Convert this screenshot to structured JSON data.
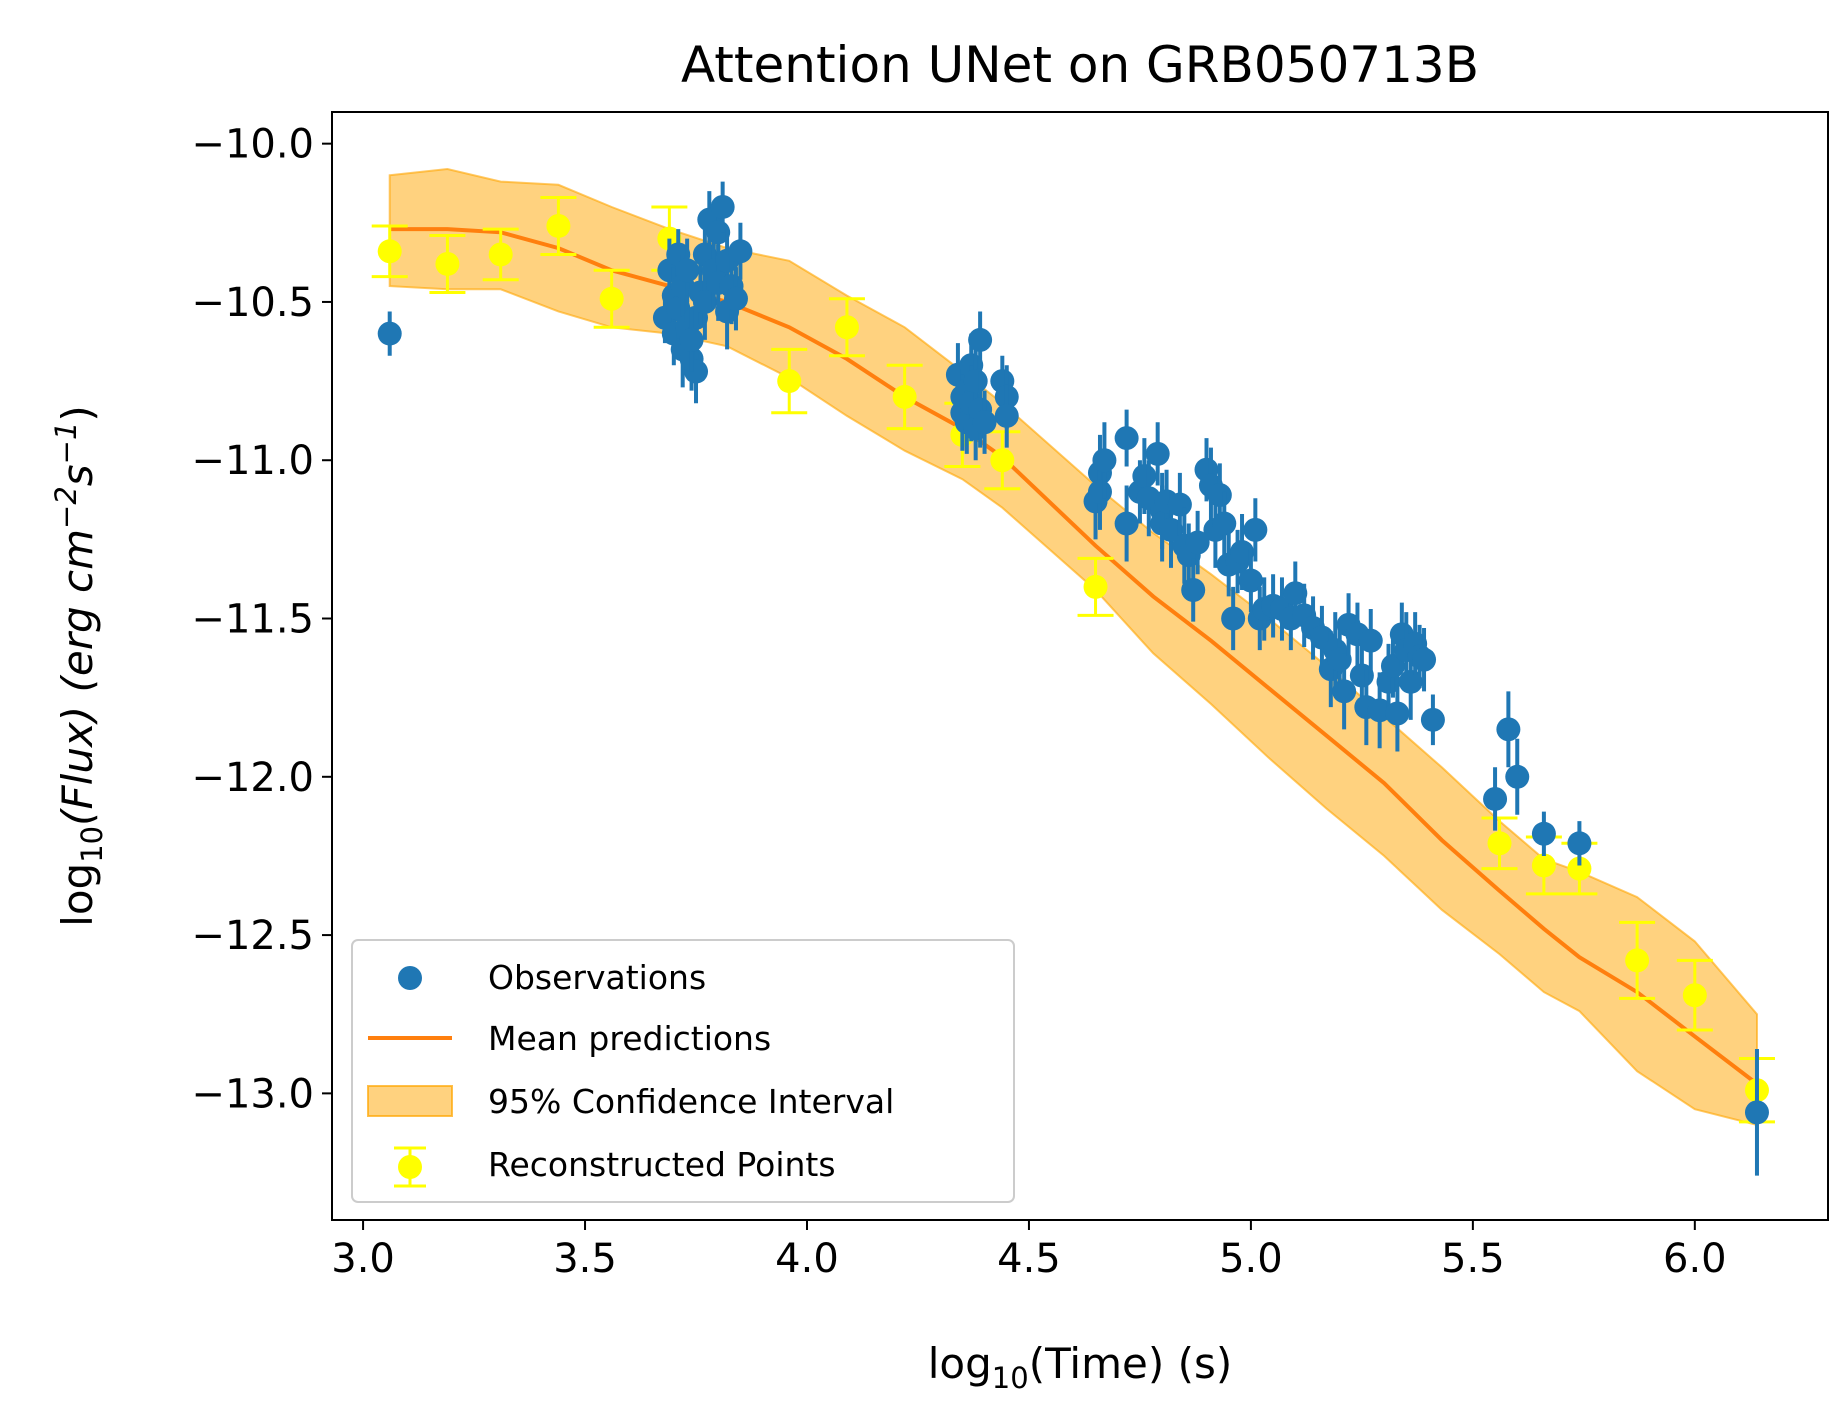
{
  "chart_data": {
    "type": "scatter",
    "title": "Attention UNet on GRB050713B",
    "xlabel_main": "log",
    "xlabel_sub": "10",
    "xlabel_rest": "(Time) (s)",
    "ylabel_main": "log",
    "ylabel_sub": "10",
    "ylabel_rest": "(Flux) (erg cm",
    "ylabel_exp1": "−2",
    "ylabel_s": "s",
    "ylabel_exp2": "−1",
    "ylabel_close": ")",
    "xlim": [
      2.93,
      6.3
    ],
    "ylim": [
      -13.4,
      -9.9
    ],
    "xticks": [
      3.0,
      3.5,
      4.0,
      4.5,
      5.0,
      5.5,
      6.0
    ],
    "xtick_labels": [
      "3.0",
      "3.5",
      "4.0",
      "4.5",
      "5.0",
      "5.5",
      "6.0"
    ],
    "yticks": [
      -10.0,
      -10.5,
      -11.0,
      -11.5,
      -12.0,
      -12.5,
      -13.0
    ],
    "ytick_labels": [
      "−10.0",
      "−10.5",
      "−11.0",
      "−11.5",
      "−12.0",
      "−12.5",
      "−13.0"
    ],
    "legend": {
      "position": "lower-left",
      "entries": [
        "Observations",
        "Mean predictions",
        "95% Confidence Interval",
        "Reconstructed Points"
      ]
    },
    "colors": {
      "observations": "#1f77b4",
      "mean": "#ff7f0e",
      "band": "#ffa500",
      "reconstructed": "#ffff00"
    },
    "mean_predictions": {
      "x": [
        3.06,
        3.19,
        3.31,
        3.44,
        3.56,
        3.69,
        3.82,
        3.96,
        4.09,
        4.22,
        4.35,
        4.44,
        4.65,
        4.78,
        4.91,
        5.04,
        5.17,
        5.3,
        5.43,
        5.56,
        5.66,
        5.74,
        5.87,
        6.0,
        6.14
      ],
      "y": [
        -10.27,
        -10.27,
        -10.28,
        -10.33,
        -10.4,
        -10.45,
        -10.5,
        -10.58,
        -10.68,
        -10.8,
        -10.9,
        -10.99,
        -11.27,
        -11.43,
        -11.57,
        -11.72,
        -11.87,
        -12.02,
        -12.2,
        -12.36,
        -12.48,
        -12.57,
        -12.68,
        -12.82,
        -12.97
      ]
    },
    "confidence_interval": {
      "x": [
        3.06,
        3.19,
        3.31,
        3.44,
        3.56,
        3.69,
        3.82,
        3.96,
        4.09,
        4.22,
        4.35,
        4.44,
        4.65,
        4.78,
        4.91,
        5.04,
        5.17,
        5.3,
        5.43,
        5.56,
        5.66,
        5.74,
        5.87,
        6.0,
        6.14
      ],
      "lower": [
        -10.45,
        -10.46,
        -10.46,
        -10.53,
        -10.58,
        -10.6,
        -10.64,
        -10.74,
        -10.86,
        -10.97,
        -11.06,
        -11.15,
        -11.41,
        -11.61,
        -11.77,
        -11.94,
        -12.1,
        -12.25,
        -12.42,
        -12.56,
        -12.68,
        -12.74,
        -12.93,
        -13.05,
        -13.1
      ],
      "upper": [
        -10.1,
        -10.08,
        -10.12,
        -10.13,
        -10.2,
        -10.27,
        -10.33,
        -10.37,
        -10.48,
        -10.58,
        -10.72,
        -10.82,
        -11.08,
        -11.23,
        -11.36,
        -11.5,
        -11.65,
        -11.81,
        -11.97,
        -12.14,
        -12.26,
        -12.3,
        -12.38,
        -12.52,
        -12.75
      ]
    },
    "reconstructed_points": {
      "x": [
        3.06,
        3.19,
        3.31,
        3.44,
        3.56,
        3.69,
        3.96,
        4.09,
        4.22,
        4.35,
        4.44,
        4.65,
        5.56,
        5.66,
        5.74,
        5.87,
        6.0,
        6.14
      ],
      "y": [
        -10.34,
        -10.38,
        -10.35,
        -10.26,
        -10.49,
        -10.3,
        -10.75,
        -10.58,
        -10.8,
        -10.92,
        -11.0,
        -11.4,
        -12.21,
        -12.28,
        -12.29,
        -12.58,
        -12.69,
        -12.99
      ],
      "err": [
        0.08,
        0.09,
        0.08,
        0.09,
        0.09,
        0.1,
        0.1,
        0.09,
        0.1,
        0.1,
        0.09,
        0.09,
        0.08,
        0.09,
        0.08,
        0.12,
        0.11,
        0.1
      ]
    },
    "observations": {
      "x": [
        3.06,
        3.68,
        3.69,
        3.7,
        3.7,
        3.71,
        3.71,
        3.72,
        3.72,
        3.73,
        3.73,
        3.74,
        3.75,
        3.75,
        3.76,
        3.77,
        3.77,
        3.78,
        3.79,
        3.8,
        3.8,
        3.81,
        3.82,
        3.82,
        3.83,
        3.84,
        3.85,
        3.74,
        4.34,
        4.35,
        4.35,
        4.36,
        4.36,
        4.37,
        4.37,
        4.38,
        4.38,
        4.39,
        4.39,
        4.4,
        4.44,
        4.45,
        4.45,
        4.65,
        4.66,
        4.66,
        4.67,
        4.72,
        4.72,
        4.75,
        4.76,
        4.77,
        4.79,
        4.8,
        4.8,
        4.81,
        4.82,
        4.84,
        4.85,
        4.86,
        4.87,
        4.88,
        4.9,
        4.91,
        4.92,
        4.93,
        4.94,
        4.95,
        4.96,
        4.97,
        4.98,
        5.0,
        5.01,
        5.02,
        5.03,
        5.05,
        5.07,
        5.09,
        5.1,
        5.12,
        5.14,
        5.16,
        5.18,
        5.19,
        5.2,
        5.21,
        5.22,
        5.24,
        5.25,
        5.26,
        5.27,
        5.29,
        5.31,
        5.32,
        5.33,
        5.34,
        5.35,
        5.36,
        5.37,
        5.38,
        5.39,
        5.41,
        5.55,
        5.58,
        5.6,
        5.66,
        5.74,
        6.14
      ],
      "y": [
        -10.6,
        -10.55,
        -10.4,
        -10.48,
        -10.6,
        -10.35,
        -10.52,
        -10.45,
        -10.65,
        -10.4,
        -10.58,
        -10.68,
        -10.72,
        -10.55,
        -10.47,
        -10.35,
        -10.5,
        -10.24,
        -10.4,
        -10.28,
        -10.44,
        -10.2,
        -10.37,
        -10.53,
        -10.45,
        -10.49,
        -10.34,
        -10.62,
        -10.73,
        -10.8,
        -10.85,
        -10.78,
        -10.88,
        -10.7,
        -10.82,
        -10.9,
        -10.75,
        -10.62,
        -10.84,
        -10.88,
        -10.75,
        -10.8,
        -10.86,
        -11.13,
        -11.04,
        -11.1,
        -11.0,
        -11.2,
        -10.93,
        -11.1,
        -11.05,
        -11.12,
        -10.98,
        -11.16,
        -11.2,
        -11.13,
        -11.22,
        -11.14,
        -11.27,
        -11.3,
        -11.41,
        -11.26,
        -11.03,
        -11.08,
        -11.22,
        -11.11,
        -11.2,
        -11.33,
        -11.5,
        -11.32,
        -11.29,
        -11.38,
        -11.22,
        -11.5,
        -11.47,
        -11.46,
        -11.47,
        -11.5,
        -11.42,
        -11.49,
        -11.53,
        -11.56,
        -11.66,
        -11.6,
        -11.63,
        -11.73,
        -11.52,
        -11.55,
        -11.68,
        -11.78,
        -11.57,
        -11.79,
        -11.7,
        -11.65,
        -11.8,
        -11.55,
        -11.6,
        -11.7,
        -11.58,
        -11.62,
        -11.63,
        -11.82,
        -12.07,
        -11.85,
        -12.0,
        -12.18,
        -12.21,
        -13.06
      ],
      "err": [
        0.07,
        0.08,
        0.1,
        0.09,
        0.1,
        0.08,
        0.1,
        0.1,
        0.12,
        0.1,
        0.1,
        0.1,
        0.1,
        0.1,
        0.1,
        0.09,
        0.12,
        0.09,
        0.12,
        0.1,
        0.12,
        0.08,
        0.1,
        0.12,
        0.12,
        0.1,
        0.09,
        0.1,
        0.1,
        0.1,
        0.12,
        0.1,
        0.1,
        0.1,
        0.12,
        0.1,
        0.12,
        0.09,
        0.12,
        0.1,
        0.08,
        0.1,
        0.1,
        0.12,
        0.12,
        0.12,
        0.12,
        0.12,
        0.09,
        0.1,
        0.12,
        0.12,
        0.1,
        0.12,
        0.12,
        0.1,
        0.12,
        0.1,
        0.12,
        0.1,
        0.1,
        0.1,
        0.1,
        0.12,
        0.12,
        0.1,
        0.1,
        0.1,
        0.1,
        0.1,
        0.12,
        0.1,
        0.1,
        0.1,
        0.1,
        0.1,
        0.1,
        0.1,
        0.1,
        0.1,
        0.1,
        0.1,
        0.12,
        0.12,
        0.12,
        0.12,
        0.1,
        0.1,
        0.1,
        0.12,
        0.1,
        0.12,
        0.12,
        0.1,
        0.12,
        0.1,
        0.12,
        0.12,
        0.1,
        0.1,
        0.1,
        0.08,
        0.1,
        0.12,
        0.12,
        0.07,
        0.07,
        0.2
      ]
    }
  }
}
